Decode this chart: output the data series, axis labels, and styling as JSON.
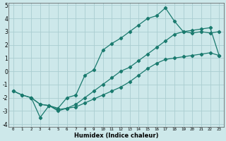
{
  "xlabel": "Humidex (Indice chaleur)",
  "bg_color": "#cde8ea",
  "grid_color": "#aacdd0",
  "line_color": "#1a7a6e",
  "xlim": [
    -0.5,
    23.5
  ],
  "ylim": [
    -4.2,
    5.2
  ],
  "xticks": [
    0,
    1,
    2,
    3,
    4,
    5,
    6,
    7,
    8,
    9,
    10,
    11,
    12,
    13,
    14,
    15,
    16,
    17,
    18,
    19,
    20,
    21,
    22,
    23
  ],
  "yticks": [
    -4,
    -3,
    -2,
    -1,
    0,
    1,
    2,
    3,
    4,
    5
  ],
  "line1_x": [
    0,
    1,
    2,
    3,
    4,
    5,
    6,
    7,
    8,
    9,
    10,
    11,
    12,
    13,
    14,
    15,
    16,
    17,
    18,
    19,
    20,
    21,
    22,
    23
  ],
  "line1_y": [
    -1.5,
    -1.8,
    -2.0,
    -2.5,
    -2.6,
    -2.8,
    -2.0,
    -1.8,
    -0.3,
    0.1,
    1.6,
    2.1,
    2.5,
    3.0,
    3.5,
    4.0,
    4.2,
    4.8,
    3.8,
    3.0,
    2.9,
    3.0,
    2.9,
    3.0
  ],
  "line2_x": [
    0,
    1,
    2,
    3,
    4,
    5,
    6,
    7,
    8,
    9,
    10,
    11,
    12,
    13,
    14,
    15,
    16,
    17,
    18,
    19,
    20,
    21,
    22,
    23
  ],
  "line2_y": [
    -1.5,
    -1.8,
    -2.0,
    -3.5,
    -2.6,
    -2.9,
    -2.8,
    -2.7,
    -2.4,
    -2.1,
    -1.8,
    -1.5,
    -1.2,
    -0.8,
    -0.3,
    0.2,
    0.6,
    0.9,
    1.0,
    1.1,
    1.2,
    1.3,
    1.4,
    1.2
  ],
  "line3_x": [
    2,
    3,
    4,
    5,
    6,
    7,
    8,
    9,
    10,
    11,
    12,
    13,
    14,
    15,
    16,
    17,
    18,
    19,
    20,
    21,
    22,
    23
  ],
  "line3_y": [
    -2.0,
    -2.5,
    -2.6,
    -3.0,
    -2.8,
    -2.5,
    -2.0,
    -1.5,
    -1.0,
    -0.5,
    0.0,
    0.3,
    0.8,
    1.3,
    1.8,
    2.3,
    2.8,
    3.0,
    3.1,
    3.2,
    3.3,
    1.2
  ]
}
